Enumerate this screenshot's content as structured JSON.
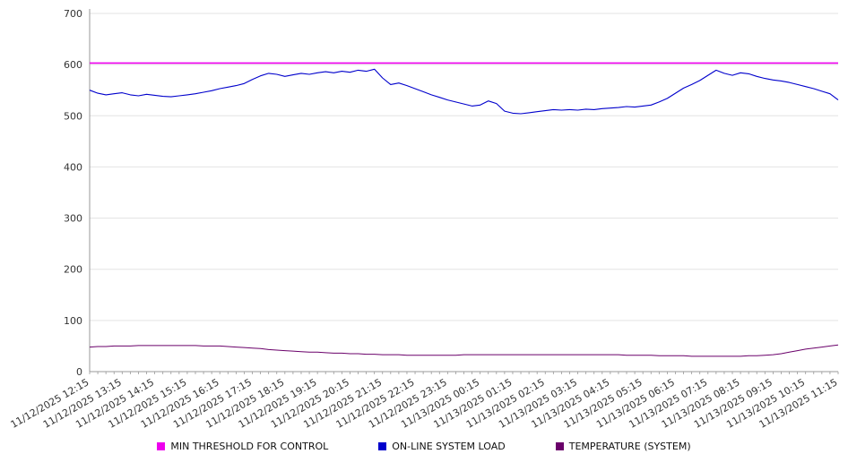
{
  "chart_data": {
    "type": "line",
    "title": "",
    "xlabel": "",
    "ylabel": "",
    "ylim": [
      0,
      700
    ],
    "yticks": [
      0,
      100,
      200,
      300,
      400,
      500,
      600,
      700
    ],
    "grid": true,
    "legend_position": "bottom",
    "points_per_label": 4,
    "x_labels": [
      "11/12/2025 12:15",
      "11/12/2025 13:15",
      "11/12/2025 14:15",
      "11/12/2025 15:15",
      "11/12/2025 16:15",
      "11/12/2025 17:15",
      "11/12/2025 18:15",
      "11/12/2025 19:15",
      "11/12/2025 20:15",
      "11/12/2025 21:15",
      "11/12/2025 22:15",
      "11/12/2025 23:15",
      "11/13/2025 00:15",
      "11/13/2025 01:15",
      "11/13/2025 02:15",
      "11/13/2025 03:15",
      "11/13/2025 04:15",
      "11/13/2025 05:15",
      "11/13/2025 06:15",
      "11/13/2025 07:15",
      "11/13/2025 08:15",
      "11/13/2025 09:15",
      "11/13/2025 10:15",
      "11/13/2025 11:15"
    ],
    "series": [
      {
        "name": "MIN THRESHOLD FOR CONTROL",
        "color": "#ee00ee",
        "constant": 603,
        "width": 1.6
      },
      {
        "name": "ON-LINE SYSTEM LOAD",
        "color": "#0000cc",
        "width": 1.1,
        "values": [
          550,
          544,
          541,
          543,
          545,
          541,
          539,
          542,
          540,
          538,
          537,
          539,
          541,
          543,
          546,
          549,
          553,
          556,
          559,
          563,
          571,
          578,
          583,
          581,
          577,
          580,
          583,
          581,
          584,
          586,
          584,
          587,
          585,
          589,
          587,
          591,
          574,
          561,
          564,
          559,
          553,
          547,
          541,
          536,
          531,
          527,
          523,
          519,
          521,
          529,
          524,
          509,
          505,
          504,
          506,
          508,
          510,
          512,
          511,
          512,
          511,
          513,
          512,
          514,
          515,
          516,
          518,
          517,
          519,
          521,
          527,
          534,
          544,
          554,
          561,
          569,
          579,
          589,
          583,
          579,
          584,
          582,
          577,
          573,
          570,
          568,
          565,
          561,
          557,
          553,
          548,
          543,
          531
        ]
      },
      {
        "name": "TEMPERATURE (SYSTEM)",
        "color": "#6a006a",
        "width": 1.0,
        "values": [
          48,
          49,
          49,
          50,
          50,
          50,
          51,
          51,
          51,
          51,
          51,
          51,
          51,
          51,
          50,
          50,
          50,
          49,
          48,
          47,
          46,
          45,
          43,
          42,
          41,
          40,
          39,
          38,
          38,
          37,
          36,
          36,
          35,
          35,
          34,
          34,
          33,
          33,
          33,
          32,
          32,
          32,
          32,
          32,
          32,
          32,
          33,
          33,
          33,
          33,
          33,
          33,
          33,
          33,
          33,
          33,
          33,
          33,
          33,
          33,
          33,
          33,
          33,
          33,
          33,
          33,
          32,
          32,
          32,
          32,
          31,
          31,
          31,
          31,
          30,
          30,
          30,
          30,
          30,
          30,
          30,
          31,
          31,
          32,
          33,
          35,
          38,
          41,
          44,
          46,
          48,
          50,
          52
        ]
      }
    ]
  },
  "legend": {
    "items": [
      {
        "label": "MIN THRESHOLD FOR CONTROL"
      },
      {
        "label": "ON-LINE SYSTEM LOAD"
      },
      {
        "label": "TEMPERATURE (SYSTEM)"
      }
    ]
  }
}
